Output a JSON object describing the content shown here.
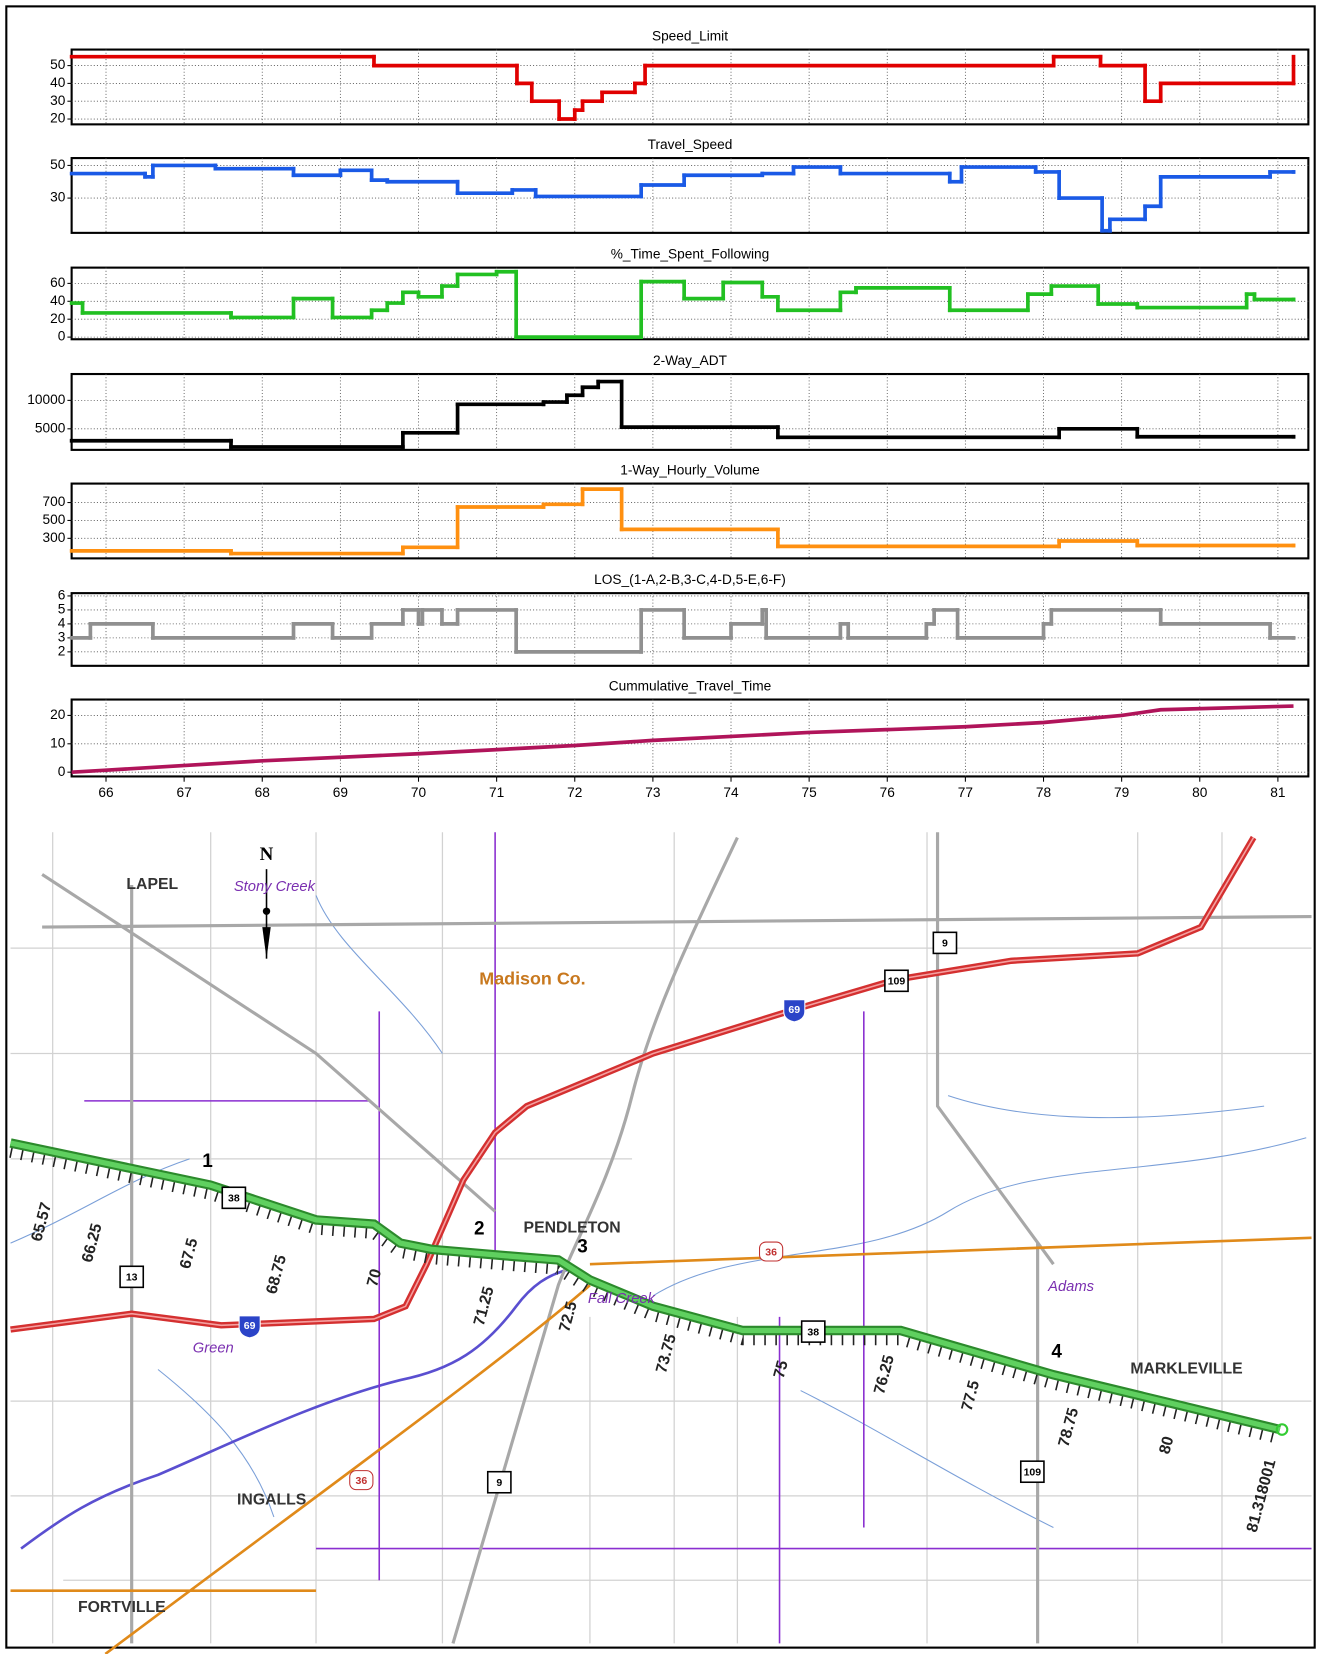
{
  "chart_data": [
    {
      "type": "line",
      "step": true,
      "title": "Speed_Limit",
      "color": "#e00000",
      "x": [
        65.56,
        69.43,
        71.26,
        71.45,
        71.8,
        72.0,
        72.1,
        72.35,
        72.77,
        72.9,
        78.13,
        78.73,
        79.3,
        79.5,
        81.2
      ],
      "values": [
        55,
        50,
        40,
        30,
        20,
        25,
        30,
        35,
        40,
        50,
        55,
        50,
        30,
        40,
        55
      ],
      "xlim": [
        65.56,
        81.39
      ],
      "ylim": [
        17,
        59
      ],
      "yticks": [
        20,
        30,
        40,
        50
      ],
      "grid": true
    },
    {
      "type": "line",
      "step": true,
      "title": "Travel_Speed",
      "color": "#1a5ae6",
      "x": [
        65.56,
        66.5,
        66.6,
        67.4,
        68.4,
        69.0,
        69.4,
        69.6,
        70.5,
        71.2,
        71.5,
        72.85,
        73.4,
        74.4,
        74.8,
        75.4,
        76.8,
        76.95,
        77.9,
        78.2,
        78.75,
        78.85,
        79.3,
        79.5,
        80.9,
        81.2
      ],
      "values": [
        45,
        43,
        50,
        48,
        44,
        47,
        41,
        40,
        33,
        35,
        31,
        38,
        44,
        45,
        49,
        45,
        40,
        49,
        46,
        30,
        10,
        17,
        25,
        43,
        46,
        46
      ],
      "xlim": [
        65.56,
        81.39
      ],
      "ylim": [
        8.7,
        54.5
      ],
      "yticks": [
        30,
        50
      ],
      "grid": true
    },
    {
      "type": "line",
      "step": true,
      "title": "%_Time_Spent_Following",
      "color": "#22c022",
      "x": [
        65.56,
        65.7,
        67.6,
        68.4,
        68.9,
        69.4,
        69.6,
        69.8,
        70.0,
        70.3,
        70.5,
        71.0,
        71.25,
        72.85,
        73.4,
        73.9,
        74.4,
        74.6,
        75.4,
        75.6,
        76.8,
        77.8,
        78.1,
        78.7,
        79.2,
        80.6,
        80.7,
        81.2
      ],
      "values": [
        38,
        27,
        22,
        43,
        22,
        30,
        38,
        50,
        45,
        57,
        70,
        73,
        0,
        62,
        43,
        61,
        45,
        30,
        50,
        55,
        30,
        48,
        57,
        37,
        33,
        48,
        42,
        42
      ],
      "xlim": [
        65.56,
        81.39
      ],
      "ylim": [
        -2.4,
        77.6
      ],
      "yticks": [
        0,
        20,
        40,
        60
      ],
      "grid": true
    },
    {
      "type": "line",
      "step": true,
      "title": "2-Way_ADT",
      "color": "#000000",
      "x": [
        65.56,
        67.6,
        69.8,
        70.5,
        71.6,
        71.9,
        72.1,
        72.3,
        72.6,
        74.6,
        78.2,
        79.2,
        81.2
      ],
      "values": [
        2900,
        1800,
        4300,
        9300,
        9700,
        10900,
        12300,
        13300,
        5300,
        3500,
        5000,
        3600,
        3600
      ],
      "xlim": [
        65.56,
        81.39
      ],
      "ylim": [
        1296,
        14630
      ],
      "yticks": [
        5000,
        10000
      ],
      "grid": true
    },
    {
      "type": "line",
      "step": true,
      "title": "1-Way_Hourly_Volume",
      "color": "#ff9010",
      "x": [
        65.56,
        67.6,
        69.8,
        70.5,
        71.6,
        72.1,
        72.6,
        74.6,
        78.2,
        79.2,
        81.2
      ],
      "values": [
        160,
        130,
        200,
        650,
        680,
        850,
        400,
        210,
        270,
        220,
        220
      ],
      "xlim": [
        65.56,
        81.39
      ],
      "ylim": [
        76,
        912
      ],
      "yticks": [
        300,
        500,
        700
      ],
      "grid": true
    },
    {
      "type": "line",
      "step": true,
      "title": "LOS_(1-A,2-B,3-C,4-D,5-E,6-F)",
      "color": "#909090",
      "x": [
        65.56,
        65.8,
        66.6,
        68.4,
        68.9,
        69.4,
        69.8,
        70.0,
        70.05,
        70.3,
        70.5,
        71.25,
        72.85,
        73.4,
        74.0,
        74.4,
        74.45,
        75.4,
        75.5,
        76.5,
        76.6,
        76.9,
        78.0,
        78.1,
        79.5,
        80.9,
        81.2
      ],
      "values": [
        3,
        4,
        3,
        4,
        3,
        4,
        5,
        4,
        5,
        4,
        5,
        2,
        5,
        3,
        4,
        5,
        3,
        4,
        3,
        4,
        5,
        3,
        4,
        5,
        4,
        3,
        3
      ],
      "xlim": [
        65.56,
        81.39
      ],
      "ylim": [
        1.0,
        6.2
      ],
      "yticks": [
        2,
        3,
        4,
        5,
        6
      ],
      "grid": true
    },
    {
      "type": "line",
      "step": false,
      "title": "Cummulative_Travel_Time",
      "color": "#b0145a",
      "x": [
        65.56,
        66,
        68,
        70,
        72,
        73,
        75,
        77,
        78,
        79,
        79.5,
        81.2
      ],
      "values": [
        0,
        0.7,
        4,
        6.5,
        9.4,
        11.2,
        14,
        16,
        17.5,
        20,
        22,
        23.3
      ],
      "xlim": [
        65.56,
        81.39
      ],
      "ylim": [
        -1.5,
        25.6
      ],
      "yticks": [
        0,
        10,
        20
      ],
      "xticks": [
        66,
        67,
        68,
        69,
        70,
        71,
        72,
        73,
        74,
        75,
        76,
        77,
        78,
        79,
        80,
        81
      ],
      "grid": true
    }
  ],
  "map": {
    "places": [
      "N",
      "LAPEL",
      "Stony Creek",
      "Madison Co.",
      "PENDLETON",
      "Fall Creek",
      "Adams",
      "MARKLEVILLE",
      "Green",
      "INGALLS",
      "FORTVILLE"
    ],
    "route_shields": [
      9,
      109,
      69,
      38,
      36,
      13,
      69,
      38,
      36,
      9,
      109
    ],
    "segments": [
      1,
      2,
      3,
      4
    ],
    "mileposts": [
      65.57,
      66.25,
      67.5,
      68.75,
      70,
      71.25,
      72.5,
      73.75,
      75,
      76.25,
      77.5,
      78.75,
      80,
      81.318001
    ]
  }
}
